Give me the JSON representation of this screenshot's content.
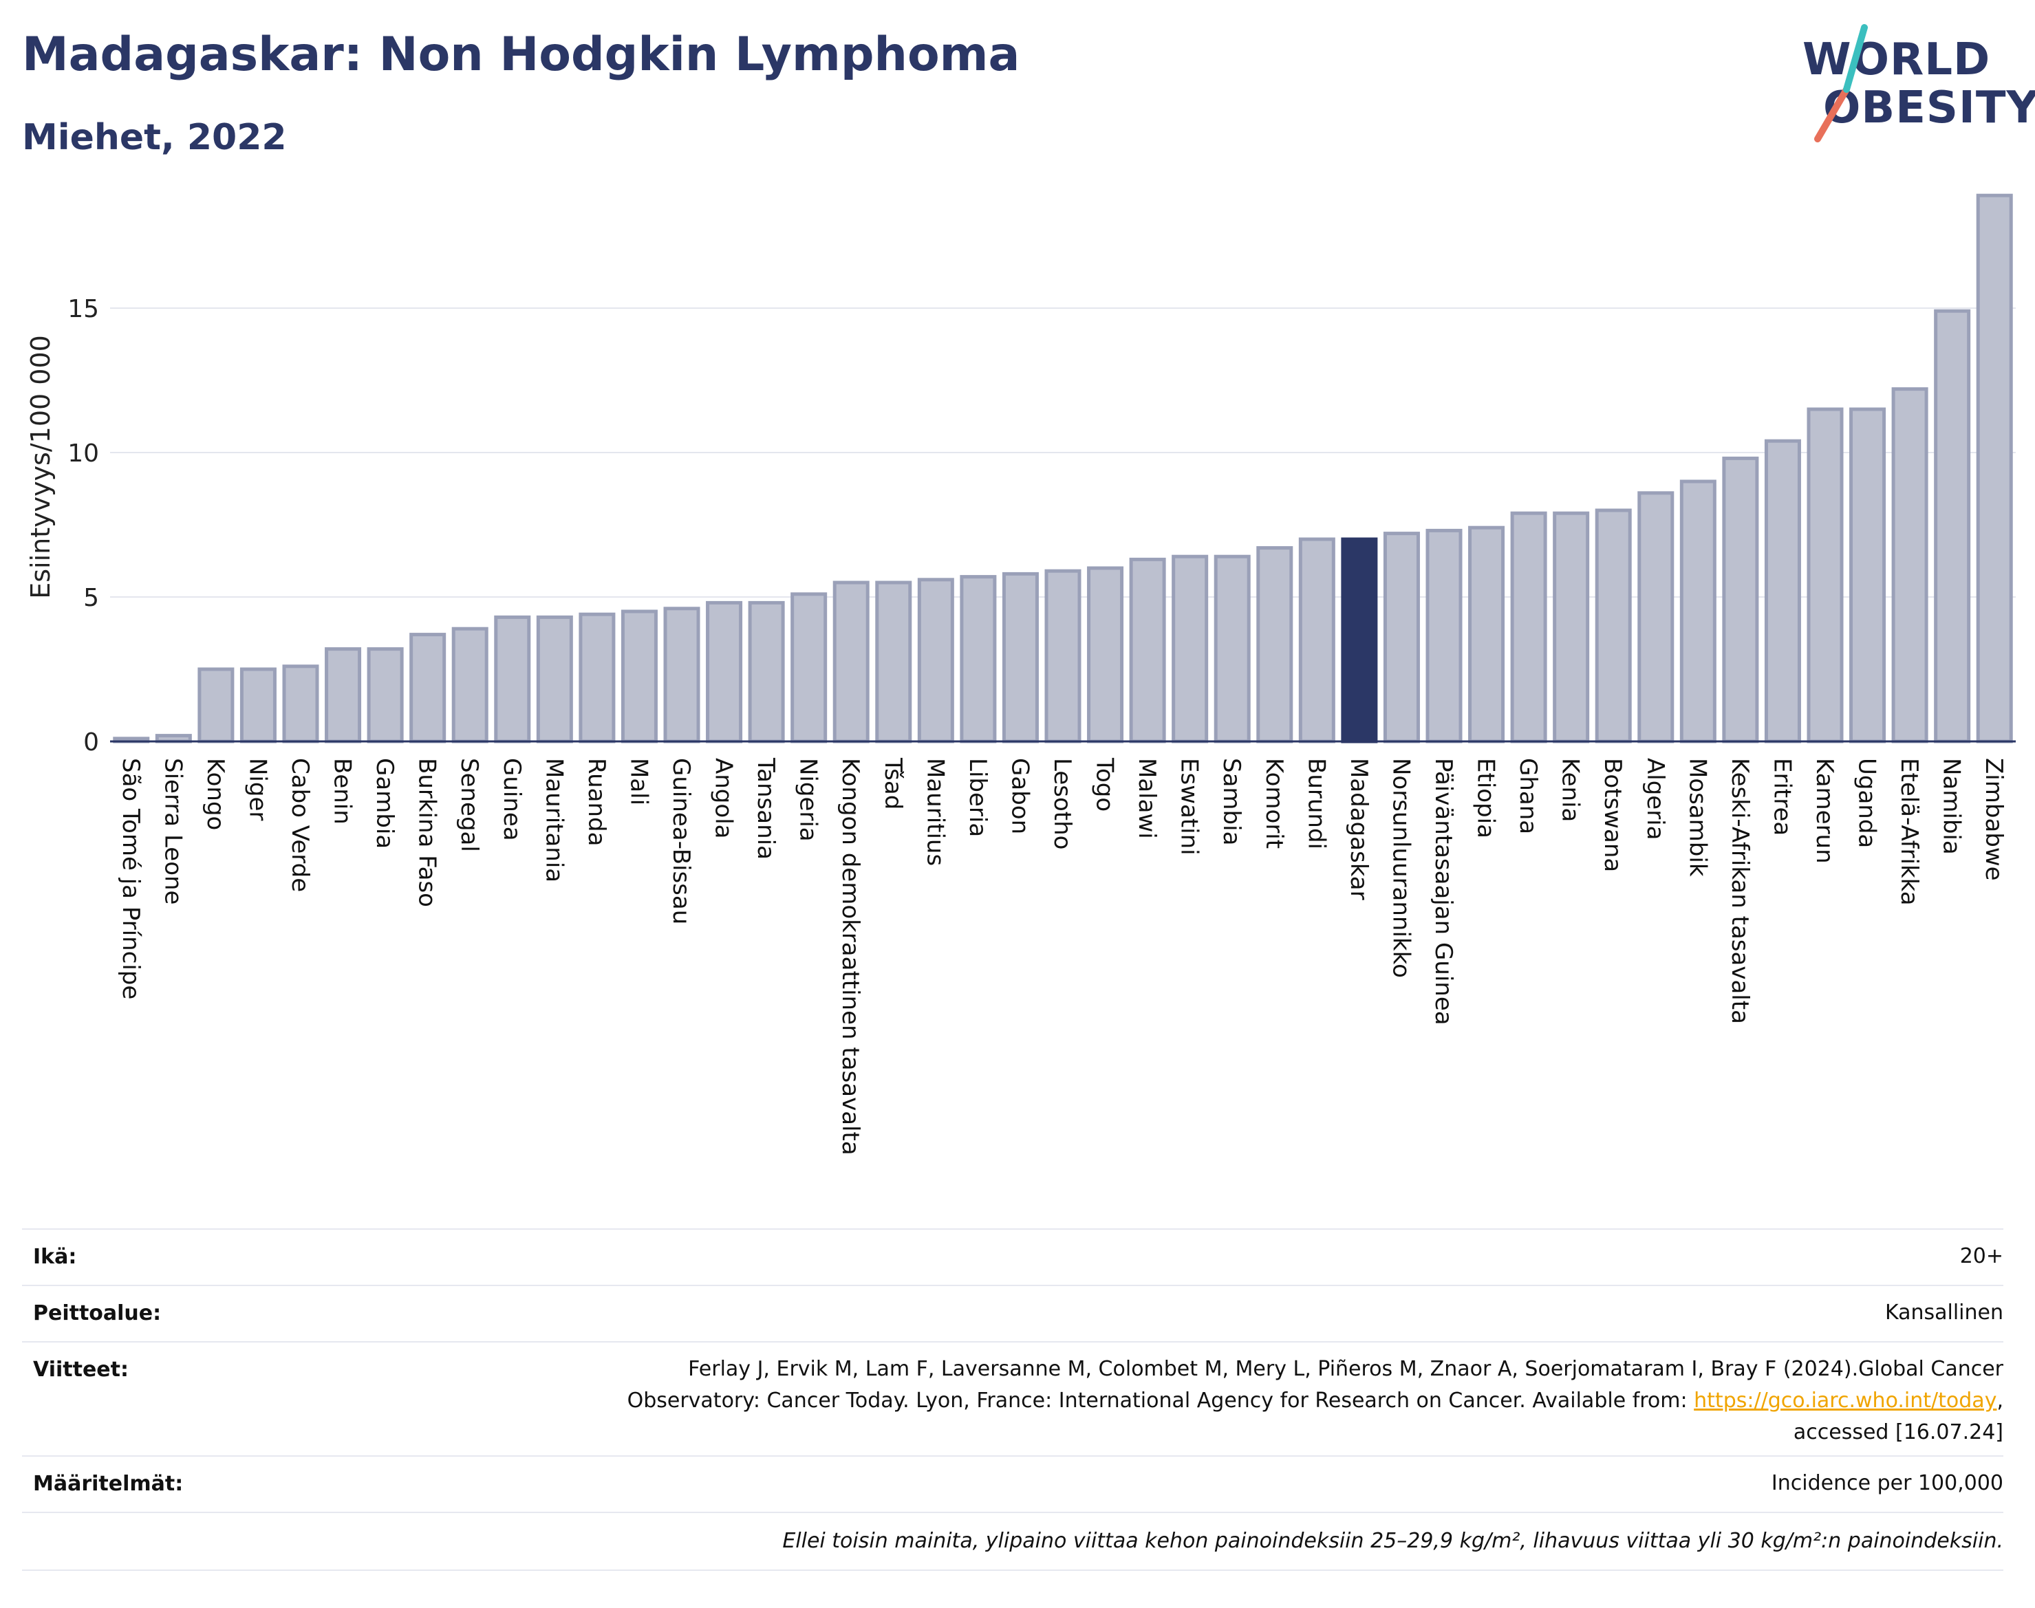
{
  "title": "Madagaskar: Non Hodgkin Lymphoma",
  "subtitle": "Miehet, 2022",
  "logo": {
    "line1": "WORLD",
    "line2": "OBESITY",
    "colors": {
      "navy": "#2b3766",
      "teal": "#3bbfbf",
      "coral": "#e8705a"
    }
  },
  "chart_data": {
    "type": "bar",
    "ylabel": "Esiintyvyys/100 000",
    "ylim": [
      0,
      19
    ],
    "yticks": [
      0,
      5,
      10,
      15
    ],
    "grid": true,
    "highlight": "Madagaskar",
    "colors": {
      "bar": "#bcc0cf",
      "bar_border": "#9aa0b8",
      "highlight": "#2b3766"
    },
    "categories": [
      "São Tomé ja Príncipe",
      "Sierra Leone",
      "Kongo",
      "Niger",
      "Cabo Verde",
      "Benin",
      "Gambia",
      "Burkina Faso",
      "Senegal",
      "Guinea",
      "Mauritania",
      "Ruanda",
      "Mali",
      "Guinea-Bissau",
      "Angola",
      "Tansania",
      "Nigeria",
      "Kongon demokraattinen tasavalta",
      "Tšad",
      "Mauritius",
      "Liberia",
      "Gabon",
      "Lesotho",
      "Togo",
      "Malawi",
      "Eswatini",
      "Sambia",
      "Komorit",
      "Burundi",
      "Madagaskar",
      "Norsunluurannikko",
      "Päiväntasaajan Guinea",
      "Etiopia",
      "Ghana",
      "Kenia",
      "Botswana",
      "Algeria",
      "Mosambik",
      "Keski-Afrikan tasavalta",
      "Eritrea",
      "Kamerun",
      "Uganda",
      "Etelä-Afrikka",
      "Namibia",
      "Zimbabwe"
    ],
    "values": [
      0.1,
      0.2,
      2.5,
      2.5,
      2.6,
      3.2,
      3.2,
      3.7,
      3.9,
      4.3,
      4.3,
      4.4,
      4.5,
      4.6,
      4.8,
      4.8,
      5.1,
      5.5,
      5.5,
      5.6,
      5.7,
      5.8,
      5.9,
      6.0,
      6.3,
      6.4,
      6.4,
      6.7,
      7.0,
      7.0,
      7.2,
      7.3,
      7.4,
      7.9,
      7.9,
      8.0,
      8.6,
      9.0,
      9.8,
      10.4,
      11.5,
      11.5,
      12.2,
      14.9,
      18.9
    ]
  },
  "meta": {
    "age_label": "Ikä:",
    "age_value": "20+",
    "coverage_label": "Peittoalue:",
    "coverage_value": "Kansallinen",
    "refs_label": "Viitteet:",
    "refs_line1": "Ferlay J, Ervik M, Lam F, Laversanne M, Colombet M, Mery L, Piñeros M, Znaor A, Soerjomataram I, Bray F (2024).Global Cancer",
    "refs_line2": "Observatory: Cancer Today. Lyon, France: International Agency for Research on Cancer. Available from: ",
    "refs_link": "https://gco.iarc.who.int/today",
    "refs_line2_end": ",",
    "refs_line3": "accessed [16.07.24]",
    "defs_label": "Määritelmät:",
    "defs_value": "Incidence per 100,000",
    "note": "Ellei toisin mainita, ylipaino viittaa kehon painoindeksiin 25–29,9 kg/m², lihavuus viittaa yli 30 kg/m²:n painoindeksiin."
  }
}
